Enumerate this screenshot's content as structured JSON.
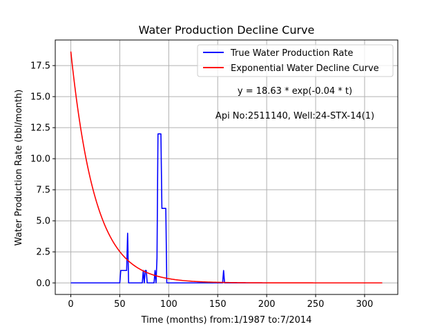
{
  "chart_data": {
    "type": "line",
    "title": "Water Production Decline Curve",
    "xlabel": "Time (months) from:1/1987 to:7/2014",
    "ylabel": "Water Production Rate (bbl/month)",
    "xlim": [
      -15.9,
      333.9
    ],
    "ylim": [
      -0.93,
      19.56
    ],
    "xticks": [
      0,
      50,
      100,
      150,
      200,
      250,
      300
    ],
    "yticks": [
      0.0,
      2.5,
      5.0,
      7.5,
      10.0,
      12.5,
      15.0,
      17.5
    ],
    "grid": true,
    "legend_position": "top-right",
    "annotations": [
      {
        "text": "y = 18.63 * exp(-0.04 * t)"
      },
      {
        "text": "Api No:2511140, Well:24-STX-14(1)"
      }
    ],
    "series": [
      {
        "name": "True Water Production Rate",
        "color": "#0000ff",
        "x": [
          0,
          50,
          51,
          56,
          57,
          58,
          59,
          73,
          74,
          75,
          76,
          77,
          78,
          79,
          85,
          86,
          87,
          88,
          89,
          90,
          91,
          92,
          93,
          94,
          95,
          96,
          97,
          98,
          99,
          154,
          155,
          156,
          157,
          318
        ],
        "y": [
          0,
          0,
          1,
          1,
          1,
          4,
          0,
          0,
          1,
          0,
          1,
          1,
          0,
          0,
          0,
          1,
          0,
          2,
          12,
          12,
          12,
          12,
          6,
          6,
          6,
          6,
          6,
          0,
          0,
          0,
          0,
          1,
          0,
          0
        ]
      },
      {
        "name": "Exponential Water Decline Curve",
        "color": "#ff0000",
        "model": {
          "a": 18.63,
          "b": 0.04,
          "t_start": 0,
          "t_end": 318
        }
      }
    ]
  }
}
